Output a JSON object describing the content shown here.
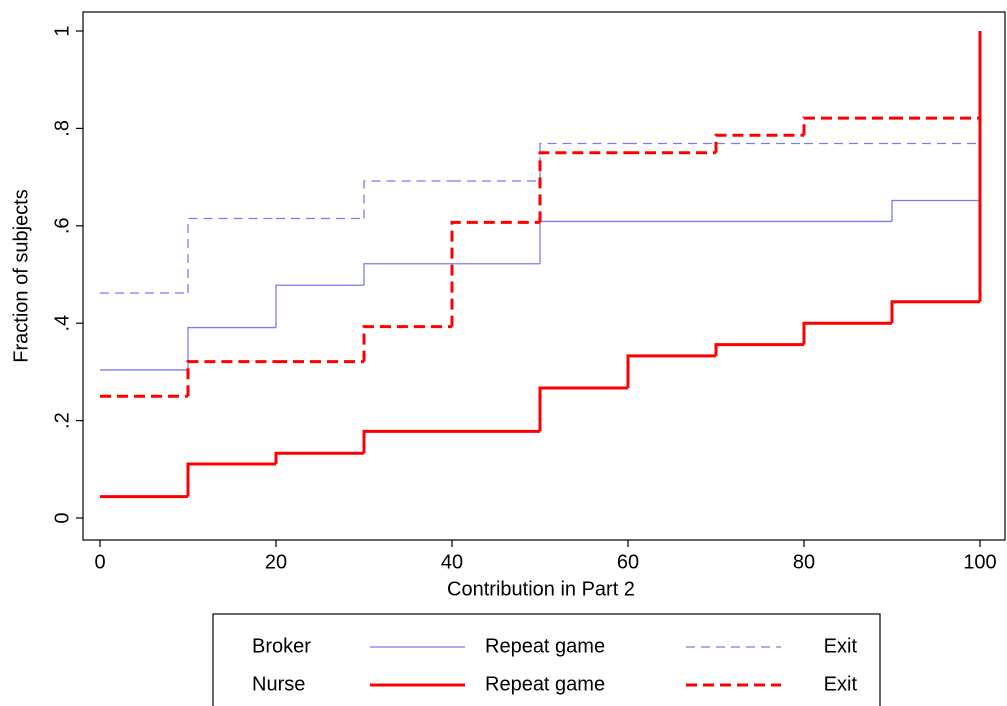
{
  "chart_data": {
    "type": "step",
    "xlabel": "Contribution in Part 2",
    "ylabel": "Fraction of subjects",
    "x": [
      0,
      10,
      20,
      30,
      40,
      50,
      60,
      70,
      80,
      90,
      100
    ],
    "xlim": [
      0,
      100
    ],
    "xticks": [
      0,
      20,
      40,
      60,
      80,
      100
    ],
    "ylim": [
      0,
      1
    ],
    "yticks": [
      0,
      {
        "value": 0.2,
        "label": ".2"
      },
      {
        "value": 0.4,
        "label": ".4"
      },
      {
        "value": 0.6,
        "label": ".6"
      },
      {
        "value": 0.8,
        "label": ".8"
      },
      1
    ],
    "grid": false,
    "series": [
      {
        "group": "Broker",
        "name": "Repeat game",
        "color": "#7b7bf0",
        "dashed": false,
        "width": 1.3,
        "values": [
          0.304,
          0.391,
          0.478,
          0.522,
          0.522,
          0.609,
          0.609,
          0.609,
          0.609,
          0.652,
          1
        ]
      },
      {
        "group": "Broker",
        "name": "Exit",
        "color": "#7b7bf0",
        "dashed": true,
        "width": 1.3,
        "values": [
          0.462,
          0.615,
          0.615,
          0.692,
          0.692,
          0.769,
          0.769,
          0.769,
          0.769,
          0.769,
          1
        ]
      },
      {
        "group": "Nurse",
        "name": "Repeat game",
        "color": "#ff0000",
        "dashed": false,
        "width": 3,
        "values": [
          0.044,
          0.111,
          0.133,
          0.178,
          0.178,
          0.267,
          0.333,
          0.356,
          0.4,
          0.444,
          1
        ]
      },
      {
        "group": "Nurse",
        "name": "Exit",
        "color": "#ff0000",
        "dashed": true,
        "width": 3,
        "values": [
          0.25,
          0.321,
          0.321,
          0.393,
          0.607,
          0.75,
          0.75,
          0.786,
          0.821,
          0.821,
          1
        ]
      }
    ]
  }
}
